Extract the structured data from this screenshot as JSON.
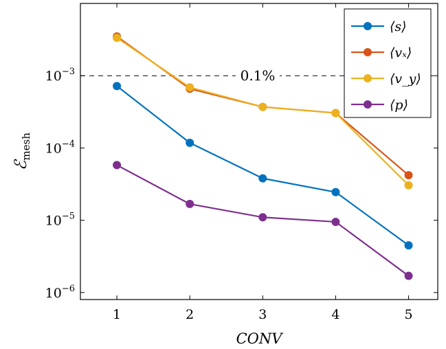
{
  "chart_data": {
    "type": "line",
    "x": [
      1,
      2,
      3,
      4,
      5
    ],
    "xlabel": "CONV",
    "ylabel": "ℰ",
    "ylabel_sub": "mesh",
    "yscale": "log",
    "ylim": [
      8e-07,
      0.01
    ],
    "xlim": [
      0.5,
      5.4
    ],
    "xticks": [
      "1",
      "2",
      "3",
      "4",
      "5"
    ],
    "yticks": [
      {
        "value": 1e-06,
        "base": "10",
        "exp": "−6"
      },
      {
        "value": 1e-05,
        "base": "10",
        "exp": "−5"
      },
      {
        "value": 0.0001,
        "base": "10",
        "exp": "−4"
      },
      {
        "value": 0.001,
        "base": "10",
        "exp": "−3"
      }
    ],
    "grid": false,
    "legend_position": "top-right",
    "reference_line": {
      "value": 0.001,
      "label": "0.1%",
      "style": "dashed"
    },
    "series": [
      {
        "name": "⟨s⟩",
        "color": "#0072bd",
        "values": [
          0.00072,
          0.000118,
          3.8e-05,
          2.45e-05,
          4.5e-06
        ]
      },
      {
        "name": "⟨vₓ⟩",
        "color": "#d95319",
        "values": [
          0.0035,
          0.00066,
          0.00037,
          0.000305,
          4.2e-05
        ]
      },
      {
        "name": "⟨v_y⟩",
        "color": "#edb120",
        "values": [
          0.00335,
          0.00069,
          0.00037,
          0.000305,
          3.05e-05
        ]
      },
      {
        "name": "⟨p⟩",
        "color": "#7e2f8e",
        "values": [
          5.8e-05,
          1.68e-05,
          1.1e-05,
          9.5e-06,
          1.7e-06
        ]
      }
    ]
  }
}
